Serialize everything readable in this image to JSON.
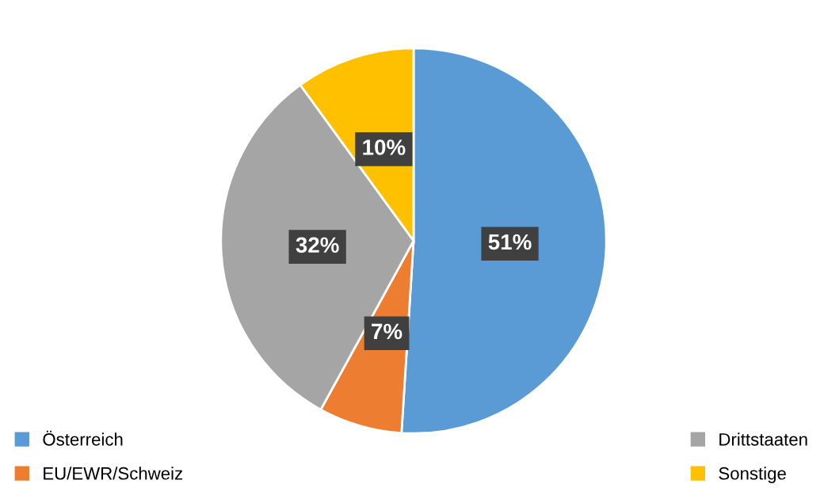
{
  "chart_data": {
    "type": "pie",
    "categories": [
      "Österreich",
      "EU/EWR/Schweiz",
      "Drittstaaten",
      "Sonstige"
    ],
    "values": [
      51,
      7,
      32,
      10
    ],
    "colors": [
      "#5b9bd5",
      "#ed7d31",
      "#a5a5a5",
      "#ffc000"
    ],
    "value_labels": [
      "51%",
      "7%",
      "32%",
      "10%"
    ],
    "legend": "bottom"
  }
}
